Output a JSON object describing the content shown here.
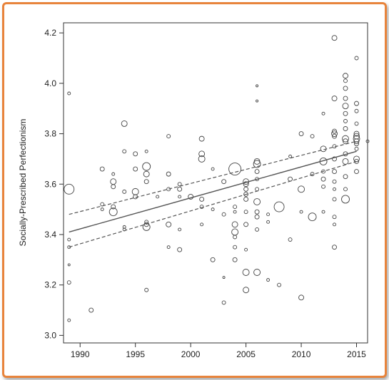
{
  "chart_data": {
    "type": "scatter",
    "title": "",
    "xlabel": "",
    "ylabel": "Socially-Prescribed Perfectionism",
    "xlim": [
      1988.5,
      2016
    ],
    "ylim": [
      2.97,
      4.24
    ],
    "xticks": [
      1990,
      1995,
      2000,
      2005,
      2010,
      2015
    ],
    "yticks": [
      3.0,
      3.2,
      3.4,
      3.6,
      3.8,
      4.0,
      4.2
    ],
    "ytick_labels": [
      "3.0",
      "3.2",
      "3.4",
      "3.6",
      "3.8",
      "4.0",
      "4.2"
    ],
    "grid": false,
    "marker": "open-circle",
    "regression": {
      "x": [
        1989,
        2015
      ],
      "fit": [
        3.41,
        3.73
      ],
      "ci_lower": [
        3.35,
        3.69
      ],
      "ci_upper": [
        3.48,
        3.77
      ]
    },
    "points": [
      [
        1989,
        3.96,
        2
      ],
      [
        1989,
        3.58,
        7
      ],
      [
        1989,
        3.38,
        2
      ],
      [
        1989,
        3.35,
        2
      ],
      [
        1989,
        3.28,
        1.5
      ],
      [
        1989,
        3.21,
        2.5
      ],
      [
        1989,
        3.06,
        2
      ],
      [
        1991,
        3.1,
        3
      ],
      [
        1992,
        3.66,
        3
      ],
      [
        1992,
        3.52,
        2.5
      ],
      [
        1992,
        3.5,
        2
      ],
      [
        1993,
        3.61,
        4
      ],
      [
        1993,
        3.59,
        3
      ],
      [
        1993,
        3.51,
        3
      ],
      [
        1993,
        3.49,
        5.5
      ],
      [
        1993,
        3.64,
        2
      ],
      [
        1994,
        3.84,
        4
      ],
      [
        1994,
        3.73,
        2.5
      ],
      [
        1994,
        3.57,
        2.5
      ],
      [
        1994,
        3.43,
        2
      ],
      [
        1994,
        3.42,
        2
      ],
      [
        1995,
        3.72,
        3
      ],
      [
        1995,
        3.66,
        3
      ],
      [
        1995,
        3.57,
        4.5
      ],
      [
        1995,
        3.55,
        3
      ],
      [
        1996,
        3.73,
        2
      ],
      [
        1996,
        3.67,
        5.5
      ],
      [
        1996,
        3.64,
        4
      ],
      [
        1996,
        3.61,
        3
      ],
      [
        1996,
        3.45,
        2.5
      ],
      [
        1996,
        3.44,
        3
      ],
      [
        1996,
        3.43,
        5
      ],
      [
        1996,
        3.18,
        2.5
      ],
      [
        1997,
        3.55,
        2
      ],
      [
        1998,
        3.79,
        2.5
      ],
      [
        1998,
        3.64,
        3
      ],
      [
        1998,
        3.58,
        2.5
      ],
      [
        1998,
        3.44,
        3.5
      ],
      [
        1998,
        3.35,
        2
      ],
      [
        1999,
        3.6,
        2.5
      ],
      [
        1999,
        3.58,
        3
      ],
      [
        1999,
        3.55,
        2
      ],
      [
        1999,
        3.42,
        2
      ],
      [
        1999,
        3.34,
        3
      ],
      [
        2000,
        3.55,
        3.5
      ],
      [
        2001,
        3.78,
        3.5
      ],
      [
        2001,
        3.72,
        4
      ],
      [
        2001,
        3.7,
        4.5
      ],
      [
        2001,
        3.54,
        3
      ],
      [
        2001,
        3.51,
        2.5
      ],
      [
        2001,
        3.44,
        2
      ],
      [
        2002,
        3.66,
        2
      ],
      [
        2002,
        3.5,
        2
      ],
      [
        2002,
        3.3,
        3
      ],
      [
        2003,
        3.61,
        3
      ],
      [
        2003,
        3.48,
        2.5
      ],
      [
        2003,
        3.23,
        1.5
      ],
      [
        2003,
        3.13,
        2.5
      ],
      [
        2004,
        3.66,
        8.5
      ],
      [
        2004,
        3.51,
        2.5
      ],
      [
        2004,
        3.49,
        2
      ],
      [
        2004,
        3.44,
        4
      ],
      [
        2004,
        3.41,
        4.5
      ],
      [
        2004,
        3.39,
        2.5
      ],
      [
        2004,
        3.35,
        2.5
      ],
      [
        2004,
        3.3,
        3
      ],
      [
        2005,
        3.61,
        4
      ],
      [
        2005,
        3.6,
        3.5
      ],
      [
        2005,
        3.58,
        3
      ],
      [
        2005,
        3.56,
        3
      ],
      [
        2005,
        3.54,
        3
      ],
      [
        2005,
        3.49,
        2.5
      ],
      [
        2005,
        3.44,
        3
      ],
      [
        2005,
        3.34,
        2
      ],
      [
        2005,
        3.25,
        4.5
      ],
      [
        2005,
        3.18,
        4
      ],
      [
        2006,
        3.99,
        1.5
      ],
      [
        2006,
        3.93,
        1.5
      ],
      [
        2006,
        3.69,
        4
      ],
      [
        2006,
        3.68,
        5
      ],
      [
        2006,
        3.65,
        3
      ],
      [
        2006,
        3.62,
        2.5
      ],
      [
        2006,
        3.58,
        2.5
      ],
      [
        2006,
        3.53,
        4.5
      ],
      [
        2006,
        3.49,
        3
      ],
      [
        2006,
        3.47,
        3
      ],
      [
        2006,
        3.42,
        2.5
      ],
      [
        2006,
        3.25,
        4.5
      ],
      [
        2007,
        3.48,
        2
      ],
      [
        2007,
        3.45,
        2
      ],
      [
        2007,
        3.22,
        2
      ],
      [
        2008,
        3.51,
        7
      ],
      [
        2008,
        3.2,
        2.5
      ],
      [
        2009,
        3.71,
        2
      ],
      [
        2009,
        3.62,
        3
      ],
      [
        2009,
        3.38,
        2.5
      ],
      [
        2010,
        3.8,
        3
      ],
      [
        2010,
        3.58,
        4.5
      ],
      [
        2010,
        3.49,
        2
      ],
      [
        2010,
        3.15,
        3.5
      ],
      [
        2011,
        3.79,
        2.5
      ],
      [
        2011,
        3.64,
        2.5
      ],
      [
        2011,
        3.47,
        5.5
      ],
      [
        2012,
        3.88,
        2
      ],
      [
        2012,
        3.74,
        4
      ],
      [
        2012,
        3.69,
        5
      ],
      [
        2012,
        3.65,
        2.5
      ],
      [
        2012,
        3.62,
        3
      ],
      [
        2012,
        3.59,
        2.5
      ],
      [
        2012,
        3.49,
        2
      ],
      [
        2013,
        4.18,
        3.5
      ],
      [
        2013,
        3.94,
        3.5
      ],
      [
        2013,
        3.81,
        3
      ],
      [
        2013,
        3.8,
        4
      ],
      [
        2013,
        3.79,
        3
      ],
      [
        2013,
        3.75,
        2.5
      ],
      [
        2013,
        3.7,
        3
      ],
      [
        2013,
        3.65,
        3
      ],
      [
        2013,
        3.61,
        2.5
      ],
      [
        2013,
        3.58,
        2
      ],
      [
        2013,
        3.54,
        2.5
      ],
      [
        2013,
        3.47,
        2.5
      ],
      [
        2013,
        3.44,
        2
      ],
      [
        2013,
        3.35,
        3
      ],
      [
        2014,
        4.03,
        3.5
      ],
      [
        2014,
        4.01,
        2.5
      ],
      [
        2014,
        3.98,
        3
      ],
      [
        2014,
        3.94,
        3
      ],
      [
        2014,
        3.91,
        4
      ],
      [
        2014,
        3.88,
        3
      ],
      [
        2014,
        3.85,
        2.5
      ],
      [
        2014,
        3.82,
        3
      ],
      [
        2014,
        3.78,
        4.5
      ],
      [
        2014,
        3.77,
        3.5
      ],
      [
        2014,
        3.72,
        3
      ],
      [
        2014,
        3.69,
        4
      ],
      [
        2014,
        3.63,
        3
      ],
      [
        2014,
        3.58,
        2.5
      ],
      [
        2014,
        3.54,
        5.5
      ],
      [
        2015,
        4.1,
        2.5
      ],
      [
        2015,
        3.92,
        3
      ],
      [
        2015,
        3.89,
        2.5
      ],
      [
        2015,
        3.84,
        2.5
      ],
      [
        2015,
        3.8,
        3.5
      ],
      [
        2015,
        3.79,
        4
      ],
      [
        2015,
        3.78,
        4.5
      ],
      [
        2015,
        3.77,
        3.5
      ],
      [
        2015,
        3.76,
        3
      ],
      [
        2015,
        3.74,
        2.5
      ],
      [
        2015,
        3.7,
        4
      ],
      [
        2015,
        3.69,
        3
      ],
      [
        2015,
        3.65,
        3
      ],
      [
        2016,
        3.77,
        2
      ]
    ]
  }
}
